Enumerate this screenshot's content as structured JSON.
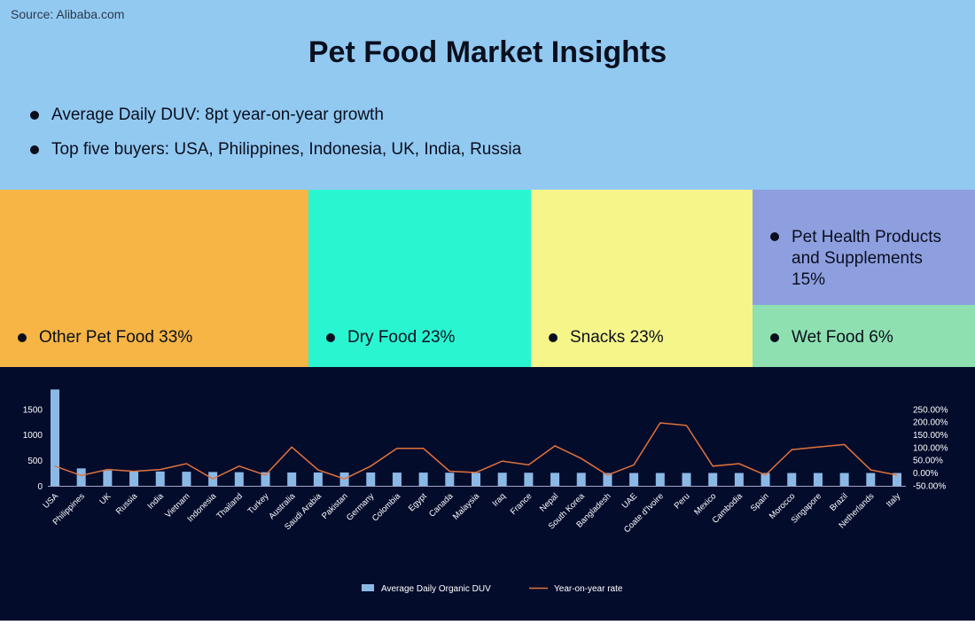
{
  "source": "Source: Alibaba.com",
  "title": "Pet Food Market Insights",
  "bullets": [
    "Average Daily DUV: 8pt year-on-year growth",
    "Top five buyers: USA, Philippines, Indonesia, UK, India, Russia"
  ],
  "colors": {
    "header_bg": "#92c9f1",
    "other_pet_food": "#f6b544",
    "dry_food": "#2af5d1",
    "snacks": "#f6f589",
    "pet_health": "#8e9fe0",
    "wet_food": "#8ee0b0",
    "chart_bg": "#040c2c",
    "bar": "#8bb9e6",
    "line": "#e2733d"
  },
  "categories": [
    {
      "label": "Other Pet Food 33%",
      "share": 33
    },
    {
      "label": "Dry Food 23%",
      "share": 23
    },
    {
      "label": "Snacks 23%",
      "share": 23
    },
    {
      "label": "Pet Health Products and Supplements 15%",
      "share": 15
    },
    {
      "label": "Wet Food 6%",
      "share": 6
    }
  ],
  "chart_data": {
    "type": "bar",
    "categories": [
      "USA",
      "Philippines",
      "UK",
      "Russia",
      "India",
      "Vietnam",
      "Indonesia",
      "Thailand",
      "Turkey",
      "Australia",
      "Saudi Arabia",
      "Pakistan",
      "Germany",
      "Colombia",
      "Egypt",
      "Canada",
      "Malaysia",
      "Iraq",
      "France",
      "Nepal",
      "South Korea",
      "Bangladesh",
      "UAE",
      "Coate d'Ivoire",
      "Peru",
      "Mexico",
      "Cambodia",
      "Spain",
      "Morocco",
      "Singapore",
      "Brazil",
      "Netherlands",
      "Italy"
    ],
    "series": [
      {
        "name": "Average Daily Organic DUV",
        "type": "bar",
        "axis": "left",
        "values": [
          1880,
          340,
          300,
          290,
          280,
          275,
          270,
          265,
          265,
          260,
          260,
          260,
          260,
          258,
          258,
          255,
          255,
          255,
          255,
          253,
          253,
          250,
          250,
          250,
          250,
          250,
          250,
          250,
          250,
          250,
          250,
          250,
          250
        ]
      },
      {
        "name": "Year-on-year rate",
        "type": "line",
        "axis": "right",
        "values": [
          25,
          -12,
          12,
          5,
          12,
          35,
          -25,
          25,
          -10,
          100,
          10,
          -25,
          25,
          95,
          95,
          5,
          0,
          45,
          30,
          105,
          55,
          -10,
          30,
          195,
          185,
          25,
          35,
          -10,
          90,
          100,
          110,
          10,
          -10
        ]
      }
    ],
    "y_left_ticks": [
      "0",
      "500",
      "1000",
      "1500"
    ],
    "y_left_range": [
      0,
      1900
    ],
    "y_right_ticks": [
      "-50.00%",
      "0.00%",
      "50.00%",
      "100.00%",
      "150.00%",
      "200.00%",
      "250.00%"
    ],
    "y_right_range": [
      -50,
      250
    ],
    "legend_position": "bottom-center"
  }
}
